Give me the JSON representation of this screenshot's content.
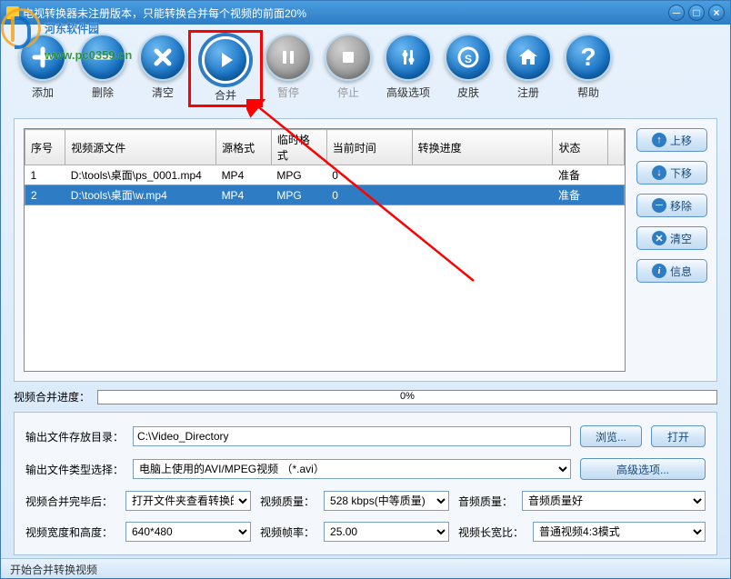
{
  "titlebar": {
    "title": "电视转换器未注册版本，只能转换合并每个视频的前面20%"
  },
  "watermark": {
    "text": "河东软件园",
    "url": "www.pc0359.cn"
  },
  "toolbar": {
    "add": "添加",
    "delete": "删除",
    "clear": "清空",
    "merge": "合并",
    "pause": "暂停",
    "stop": "停止",
    "advanced": "高级选项",
    "skin": "皮肤",
    "register": "注册",
    "help": "帮助"
  },
  "table": {
    "headers": {
      "seq": "序号",
      "source": "视频源文件",
      "srcFmt": "源格式",
      "tmpFmt": "临时格式",
      "curTime": "当前时间",
      "progress": "转换进度",
      "status": "状态"
    },
    "rows": [
      {
        "seq": "1",
        "source": "D:\\tools\\桌面\\ps_0001.mp4",
        "srcFmt": "MP4",
        "tmpFmt": "MPG",
        "curTime": "0",
        "progress": "",
        "status": "准备"
      },
      {
        "seq": "2",
        "source": "D:\\tools\\桌面\\w.mp4",
        "srcFmt": "MP4",
        "tmpFmt": "MPG",
        "curTime": "0",
        "progress": "",
        "status": "准备"
      }
    ]
  },
  "sideButtons": {
    "up": "上移",
    "down": "下移",
    "remove": "移除",
    "clear": "清空",
    "info": "信息"
  },
  "progress": {
    "label": "视频合并进度：",
    "pct": "0%"
  },
  "settings": {
    "outputDirLabel": "输出文件存放目录：",
    "outputDir": "C:\\Video_Directory",
    "browse": "浏览...",
    "open": "打开",
    "outputTypeLabel": "输出文件类型选择：",
    "outputType": "电脑上使用的AVI/MPEG视频 （*.avi）",
    "advanced": "高级选项...",
    "afterMergeLabel": "视频合并完毕后：",
    "afterMerge": "打开文件夹查看转换的",
    "videoQualityLabel": "视频质量：",
    "videoQuality": "528 kbps(中等质量)",
    "audioQualityLabel": "音频质量：",
    "audioQuality": "音频质量好",
    "dimensionsLabel": "视频宽度和高度：",
    "dimensions": "640*480",
    "fpsLabel": "视频帧率：",
    "fps": "25.00",
    "aspectLabel": "视频长宽比：",
    "aspect": "普通视频4:3模式"
  },
  "statusbar": "开始合并转换视频",
  "colors": {
    "primary": "#2d7cc4",
    "highlight": "#f00",
    "toolGradStart": "#6bb8f2",
    "toolGradEnd": "#0d5494"
  }
}
